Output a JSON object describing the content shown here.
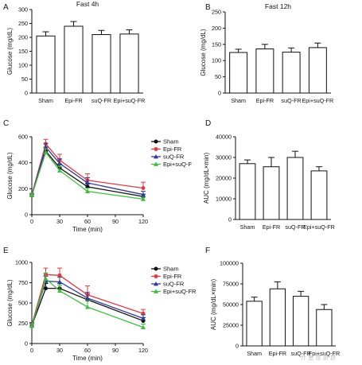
{
  "watermark": "什 思 昂 昂 昂",
  "chart_data": [
    {
      "panel": "A",
      "type": "bar",
      "title": "Fast 4h",
      "xlabel": "",
      "ylabel": "Glucose (mg/dL)",
      "ylim": [
        0,
        300
      ],
      "yticks": [
        0,
        50,
        100,
        150,
        200,
        250,
        300
      ],
      "categories": [
        "Sham",
        "Epi-FR",
        "suQ-FR",
        "Epi+suQ-FR"
      ],
      "values": [
        205,
        240,
        210,
        212
      ],
      "errors": [
        15,
        17,
        15,
        15
      ]
    },
    {
      "panel": "B",
      "type": "bar",
      "title": "Fast 12h",
      "xlabel": "",
      "ylabel": "Glucose (mg/dL)",
      "ylim": [
        0,
        250
      ],
      "yticks": [
        0,
        50,
        100,
        150,
        200,
        250
      ],
      "categories": [
        "Sham",
        "Epi-FR",
        "suQ-FR",
        "Epi+suQ-FR"
      ],
      "values": [
        125,
        136,
        126,
        140
      ],
      "errors": [
        10,
        14,
        13,
        14
      ]
    },
    {
      "panel": "C",
      "type": "line",
      "title": "",
      "xlabel": "Time (min)",
      "ylabel": "Glucose (mg/dL)",
      "xlim": [
        0,
        120
      ],
      "xticks": [
        0,
        30,
        60,
        90,
        120
      ],
      "ylim": [
        0,
        600
      ],
      "yticks": [
        0,
        200,
        400,
        600
      ],
      "legend": "right",
      "x": [
        0,
        15,
        30,
        60,
        120
      ],
      "series": [
        {
          "name": "Sham",
          "color": "#111111",
          "marker": "circle",
          "values": [
            148,
            490,
            360,
            215,
            140
          ],
          "errors": [
            10,
            30,
            30,
            28,
            18
          ]
        },
        {
          "name": "Epi-FR",
          "color": "#e8383d",
          "marker": "circle",
          "values": [
            155,
            545,
            420,
            265,
            205
          ],
          "errors": [
            10,
            35,
            45,
            50,
            45
          ]
        },
        {
          "name": "suQ-FR",
          "color": "#2e3a9e",
          "marker": "triangle",
          "values": [
            152,
            520,
            395,
            245,
            155
          ],
          "errors": [
            10,
            30,
            35,
            40,
            25
          ]
        },
        {
          "name": "Epi+suQ-F",
          "color": "#3cc03c",
          "marker": "triangle",
          "values": [
            150,
            480,
            340,
            180,
            120
          ],
          "errors": [
            10,
            28,
            30,
            25,
            15
          ]
        }
      ]
    },
    {
      "panel": "D",
      "type": "bar",
      "title": "",
      "xlabel": "",
      "ylabel": "AUC (mg/dL×min)",
      "ylim": [
        0,
        40000
      ],
      "yticks": [
        0,
        10000,
        20000,
        30000,
        40000
      ],
      "categories": [
        "Sham",
        "Epi-FR",
        "suQ-FR",
        "Epi+suQ-FR"
      ],
      "values": [
        27000,
        25500,
        30000,
        23500
      ],
      "errors": [
        1800,
        4500,
        3000,
        2000
      ]
    },
    {
      "panel": "E",
      "type": "line",
      "title": "",
      "xlabel": "Time (min)",
      "ylabel": "Glucose (mg/dL)",
      "xlim": [
        0,
        120
      ],
      "xticks": [
        0,
        30,
        60,
        90,
        120
      ],
      "ylim": [
        0,
        1000
      ],
      "yticks": [
        0,
        250,
        500,
        750,
        1000
      ],
      "legend": "right",
      "x": [
        0,
        15,
        30,
        60,
        120
      ],
      "series": [
        {
          "name": "Sham",
          "color": "#111111",
          "marker": "circle",
          "values": [
            220,
            680,
            680,
            540,
            280
          ],
          "errors": [
            30,
            60,
            60,
            70,
            40
          ]
        },
        {
          "name": "Epi-FR",
          "color": "#e8383d",
          "marker": "circle",
          "values": [
            230,
            850,
            840,
            600,
            370
          ],
          "errors": [
            30,
            80,
            90,
            110,
            50
          ]
        },
        {
          "name": "suQ-FR",
          "color": "#2e3a9e",
          "marker": "triangle",
          "values": [
            225,
            770,
            760,
            560,
            310
          ],
          "errors": [
            30,
            60,
            60,
            70,
            45
          ]
        },
        {
          "name": "Epi+suQ-FR",
          "color": "#3cc03c",
          "marker": "triangle",
          "values": [
            215,
            800,
            650,
            450,
            200
          ],
          "errors": [
            30,
            70,
            70,
            80,
            40
          ]
        }
      ]
    },
    {
      "panel": "F",
      "type": "bar",
      "title": "",
      "xlabel": "",
      "ylabel": "AUC (mg/dL×min)",
      "ylim": [
        0,
        100000
      ],
      "yticks": [
        0,
        25000,
        50000,
        75000,
        100000
      ],
      "categories": [
        "Sham",
        "Epi-FR",
        "suQ-FR",
        "Epi+suQ-FR"
      ],
      "values": [
        54000,
        69000,
        60000,
        44000
      ],
      "errors": [
        5000,
        8500,
        6000,
        6000
      ]
    }
  ]
}
